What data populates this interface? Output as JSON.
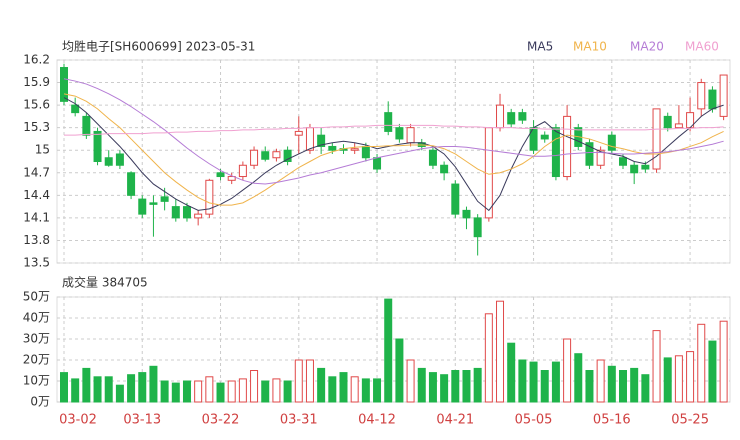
{
  "chart_data": [
    {
      "type": "candlestick",
      "title": "均胜电子[SH600699] 2023-05-31",
      "up_color": "#e04848",
      "down_color": "#1fb34a",
      "open": [
        16.1,
        15.6,
        15.45,
        15.25,
        14.9,
        14.95,
        14.7,
        14.35,
        14.3,
        14.38,
        14.25,
        14.25,
        14.1,
        14.15,
        14.7,
        14.6,
        14.65,
        14.8,
        14.98,
        14.9,
        15.0,
        15.2,
        15.0,
        15.2,
        15.05,
        15.02,
        15.0,
        15.05,
        14.9,
        15.5,
        15.3,
        15.1,
        15.1,
        15.0,
        14.8,
        14.55,
        14.2,
        14.1,
        14.1,
        15.3,
        15.5,
        15.5,
        15.3,
        15.2,
        15.3,
        14.65,
        15.3,
        15.1,
        14.8,
        15.2,
        14.9,
        14.8,
        14.8,
        14.75,
        15.45,
        15.3,
        15.3,
        15.55,
        15.8,
        15.45
      ],
      "high": [
        16.15,
        15.7,
        15.5,
        15.3,
        15.0,
        15.0,
        14.72,
        14.4,
        14.4,
        14.5,
        14.35,
        14.3,
        14.2,
        14.62,
        14.75,
        14.7,
        14.85,
        15.05,
        15.05,
        15.02,
        15.05,
        15.45,
        15.35,
        15.3,
        15.1,
        15.08,
        15.1,
        15.1,
        14.95,
        15.65,
        15.35,
        15.35,
        15.15,
        15.05,
        14.85,
        14.6,
        14.25,
        14.15,
        15.3,
        15.75,
        15.55,
        15.55,
        15.4,
        15.25,
        15.35,
        15.6,
        15.35,
        15.15,
        15.05,
        15.25,
        14.95,
        14.85,
        14.85,
        15.55,
        15.5,
        15.6,
        15.7,
        15.95,
        15.85,
        16.0
      ],
      "low": [
        15.6,
        15.45,
        15.15,
        14.8,
        14.78,
        14.75,
        14.35,
        14.1,
        13.85,
        14.2,
        14.05,
        14.05,
        14.0,
        14.1,
        14.6,
        14.55,
        14.6,
        14.75,
        14.85,
        14.85,
        14.8,
        14.95,
        14.95,
        14.95,
        14.95,
        14.95,
        14.95,
        14.85,
        14.7,
        15.2,
        15.1,
        15.05,
        15.0,
        14.75,
        14.6,
        14.1,
        13.95,
        13.6,
        14.05,
        15.25,
        15.3,
        15.35,
        14.95,
        15.1,
        14.6,
        14.6,
        15.0,
        14.75,
        14.75,
        14.95,
        14.75,
        14.55,
        14.7,
        14.7,
        15.25,
        15.3,
        15.25,
        15.45,
        15.5,
        15.4
      ],
      "close": [
        15.65,
        15.5,
        15.2,
        14.85,
        14.8,
        14.8,
        14.4,
        14.15,
        14.28,
        14.32,
        14.1,
        14.1,
        14.15,
        14.6,
        14.65,
        14.65,
        14.8,
        15.0,
        14.88,
        14.98,
        14.85,
        15.25,
        15.3,
        15.05,
        15.0,
        15.0,
        15.02,
        14.9,
        14.75,
        15.25,
        15.15,
        15.3,
        15.05,
        14.8,
        14.7,
        14.15,
        14.1,
        13.85,
        15.3,
        15.6,
        15.35,
        15.4,
        15.0,
        15.15,
        14.65,
        15.45,
        15.05,
        14.8,
        15.0,
        15.0,
        14.8,
        14.7,
        14.75,
        15.55,
        15.3,
        15.35,
        15.5,
        15.9,
        15.55,
        16.0
      ],
      "series": [
        {
          "name": "MA5",
          "color": "#3a3a5c",
          "values": [
            15.7,
            15.62,
            15.5,
            15.35,
            15.2,
            15.05,
            14.88,
            14.7,
            14.55,
            14.45,
            14.35,
            14.27,
            14.2,
            14.22,
            14.28,
            14.36,
            14.47,
            14.58,
            14.7,
            14.8,
            14.88,
            14.95,
            15.02,
            15.07,
            15.1,
            15.12,
            15.1,
            15.07,
            15.02,
            15.05,
            15.08,
            15.1,
            15.1,
            15.05,
            14.95,
            14.78,
            14.55,
            14.32,
            14.2,
            14.4,
            14.75,
            15.05,
            15.3,
            15.38,
            15.25,
            15.18,
            15.12,
            15.05,
            14.98,
            14.95,
            14.92,
            14.85,
            14.82,
            14.92,
            15.05,
            15.18,
            15.3,
            15.45,
            15.55,
            15.6
          ]
        },
        {
          "name": "MA10",
          "color": "#f0b44c",
          "values": [
            15.75,
            15.72,
            15.65,
            15.55,
            15.42,
            15.3,
            15.15,
            15.0,
            14.85,
            14.7,
            14.58,
            14.47,
            14.37,
            14.3,
            14.27,
            14.27,
            14.3,
            14.38,
            14.47,
            14.57,
            14.67,
            14.77,
            14.85,
            14.93,
            14.98,
            15.02,
            15.04,
            15.05,
            15.05,
            15.06,
            15.06,
            15.07,
            15.07,
            15.06,
            15.02,
            14.95,
            14.85,
            14.75,
            14.68,
            14.7,
            14.75,
            14.82,
            14.92,
            15.05,
            15.15,
            15.2,
            15.18,
            15.15,
            15.1,
            15.05,
            15.02,
            14.98,
            14.95,
            14.95,
            14.97,
            15.0,
            15.05,
            15.1,
            15.18,
            15.25
          ]
        },
        {
          "name": "MA20",
          "color": "#b57cd6",
          "values": [
            15.95,
            15.92,
            15.88,
            15.82,
            15.75,
            15.67,
            15.58,
            15.48,
            15.38,
            15.27,
            15.15,
            15.03,
            14.92,
            14.82,
            14.73,
            14.66,
            14.6,
            14.56,
            14.55,
            14.57,
            14.6,
            14.63,
            14.67,
            14.7,
            14.74,
            14.78,
            14.82,
            14.86,
            14.9,
            14.93,
            14.96,
            14.99,
            15.02,
            15.04,
            15.05,
            15.05,
            15.04,
            15.02,
            15.0,
            14.98,
            14.96,
            14.94,
            14.92,
            14.92,
            14.93,
            14.95,
            14.96,
            14.97,
            14.97,
            14.96,
            14.95,
            14.95,
            14.96,
            14.97,
            14.98,
            15.0,
            15.02,
            15.05,
            15.08,
            15.12
          ]
        },
        {
          "name": "MA60",
          "color": "#f0a0d0",
          "values": [
            15.2,
            15.2,
            15.21,
            15.21,
            15.22,
            15.22,
            15.22,
            15.22,
            15.23,
            15.23,
            15.24,
            15.24,
            15.25,
            15.25,
            15.26,
            15.26,
            15.27,
            15.27,
            15.28,
            15.28,
            15.29,
            15.29,
            15.3,
            15.3,
            15.31,
            15.31,
            15.32,
            15.32,
            15.33,
            15.33,
            15.33,
            15.33,
            15.33,
            15.33,
            15.32,
            15.32,
            15.31,
            15.31,
            15.3,
            15.3,
            15.3,
            15.29,
            15.29,
            15.28,
            15.28,
            15.28,
            15.27,
            15.27,
            15.27,
            15.27,
            15.27,
            15.27,
            15.27,
            15.28,
            15.28,
            15.29,
            15.29,
            15.3,
            15.3,
            15.31
          ]
        }
      ],
      "ylim": [
        13.5,
        16.2
      ],
      "yticks": [
        16.2,
        15.9,
        15.6,
        15.3,
        15,
        14.7,
        14.4,
        14.1,
        13.8,
        13.5
      ],
      "grid": true
    },
    {
      "type": "bar",
      "title": "成交量 384705",
      "categories": [
        "03-02",
        null,
        null,
        null,
        null,
        null,
        null,
        "03-13",
        null,
        null,
        null,
        null,
        null,
        null,
        "03-22",
        null,
        null,
        null,
        null,
        null,
        null,
        "03-31",
        null,
        null,
        null,
        null,
        null,
        null,
        "04-12",
        null,
        null,
        null,
        null,
        null,
        null,
        "04-21",
        null,
        null,
        null,
        null,
        null,
        null,
        "05-05",
        null,
        null,
        null,
        null,
        null,
        null,
        "05-16",
        null,
        null,
        null,
        null,
        null,
        null,
        "05-25",
        null,
        null,
        null
      ],
      "values": [
        14,
        11,
        16,
        12,
        12,
        8,
        13,
        14,
        17,
        10,
        9,
        10,
        10,
        12,
        9,
        10,
        11,
        15,
        10,
        11,
        10,
        20,
        20,
        16,
        12,
        14,
        12,
        11,
        11,
        49,
        30,
        20,
        16,
        14,
        13,
        15,
        15,
        16,
        42,
        48,
        28,
        20,
        19,
        15,
        19,
        30,
        23,
        15,
        20,
        17,
        15,
        16,
        13,
        34,
        21,
        22,
        24,
        37,
        29,
        38.47
      ],
      "ylim": [
        0,
        50
      ],
      "yticks": [
        {
          "value": 50,
          "label": "50万"
        },
        {
          "value": 40,
          "label": "40万"
        },
        {
          "value": 30,
          "label": "30万"
        },
        {
          "value": 20,
          "label": "20万"
        },
        {
          "value": 10,
          "label": "10万"
        },
        {
          "value": 0,
          "label": "0万"
        }
      ],
      "grid": true
    }
  ]
}
